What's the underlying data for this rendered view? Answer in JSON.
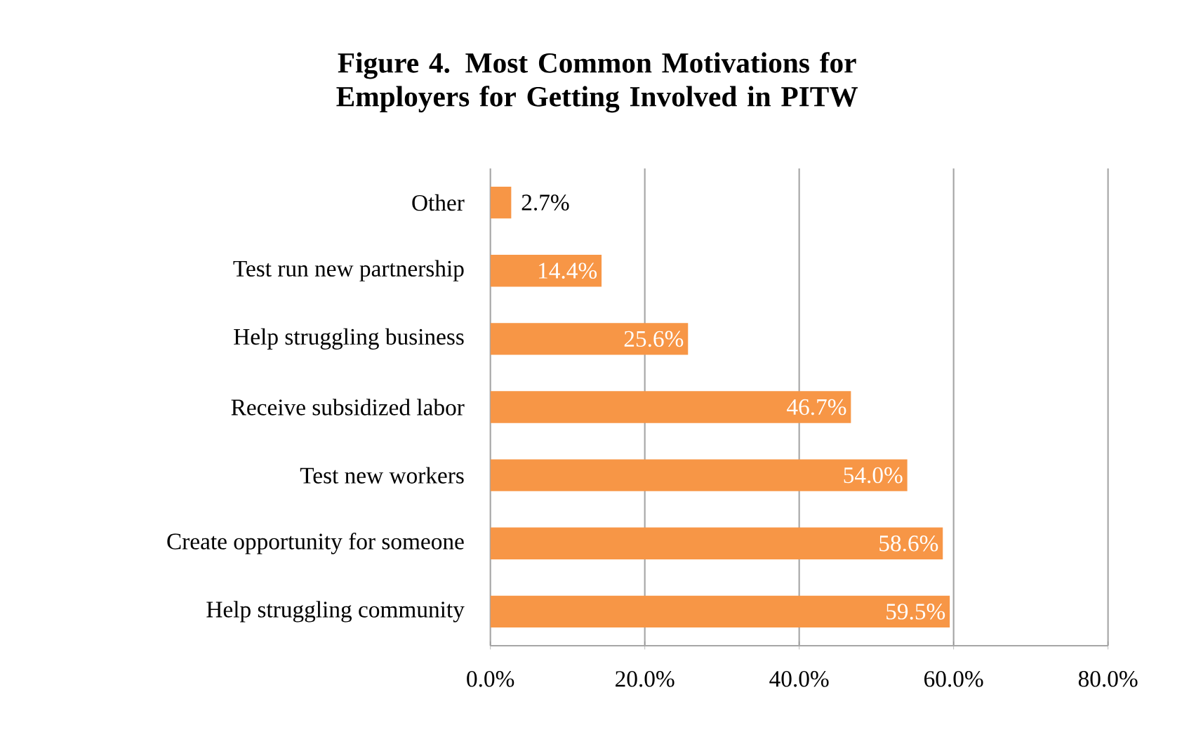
{
  "chart_data": {
    "type": "bar",
    "orientation": "horizontal",
    "title": "Figure 4.  Most Common Motivations for Employers for Getting Involved in PITW",
    "categories": [
      "Other",
      "Test run new partnership",
      "Help struggling business",
      "Receive subsidized labor",
      "Test new workers",
      "Create opportunity for someone",
      "Help struggling community"
    ],
    "values": [
      2.7,
      14.4,
      25.6,
      46.7,
      54.0,
      58.6,
      59.5
    ],
    "value_labels": [
      "2.7%",
      "14.4%",
      "25.6%",
      "46.7%",
      "54.0%",
      "58.6%",
      "59.5%"
    ],
    "color": "#f79646",
    "xlim": [
      0,
      80
    ],
    "xticks": [
      {
        "value": 0,
        "label": "0.0%"
      },
      {
        "value": 20,
        "label": "20.0%"
      },
      {
        "value": 40,
        "label": "40.0%"
      },
      {
        "value": 60,
        "label": "60.0%"
      },
      {
        "value": 80,
        "label": "80.0%"
      }
    ],
    "grid": "x"
  }
}
